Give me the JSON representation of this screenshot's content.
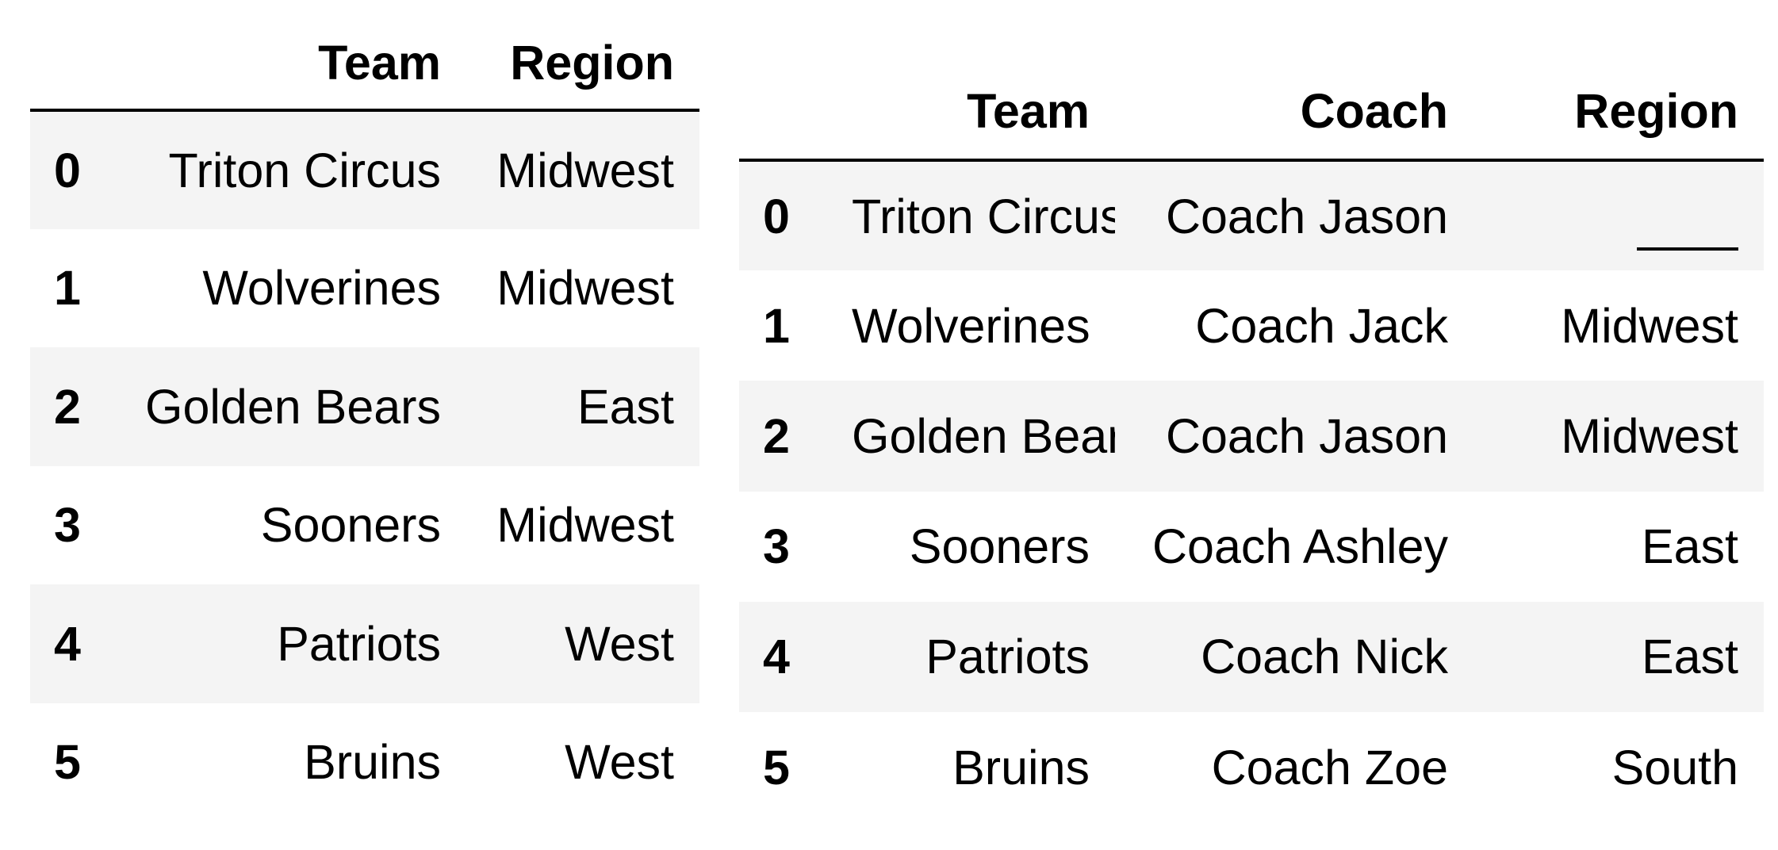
{
  "left_table": {
    "columns": [
      "Team",
      "Region"
    ],
    "index": [
      "0",
      "1",
      "2",
      "3",
      "4",
      "5"
    ],
    "rows": [
      [
        "Triton Circus",
        "Midwest"
      ],
      [
        "Wolverines",
        "Midwest"
      ],
      [
        "Golden Bears",
        "East"
      ],
      [
        "Sooners",
        "Midwest"
      ],
      [
        "Patriots",
        "West"
      ],
      [
        "Bruins",
        "West"
      ]
    ]
  },
  "right_table": {
    "columns": [
      "Team",
      "Coach",
      "Region"
    ],
    "index": [
      "0",
      "1",
      "2",
      "3",
      "4",
      "5"
    ],
    "rows": [
      [
        "Triton Circus",
        "Coach Jason",
        ""
      ],
      [
        "Wolverines",
        "Coach Jack",
        "Midwest"
      ],
      [
        "Golden Bears",
        "Coach Jason",
        "Midwest"
      ],
      [
        "Sooners",
        "Coach Ashley",
        "East"
      ],
      [
        "Patriots",
        "Coach Nick",
        "East"
      ],
      [
        "Bruins",
        "Coach Zoe",
        "South"
      ]
    ]
  },
  "colors": {
    "stripe": "#f4f4f4",
    "background": "#ffffff",
    "text": "#000000"
  }
}
